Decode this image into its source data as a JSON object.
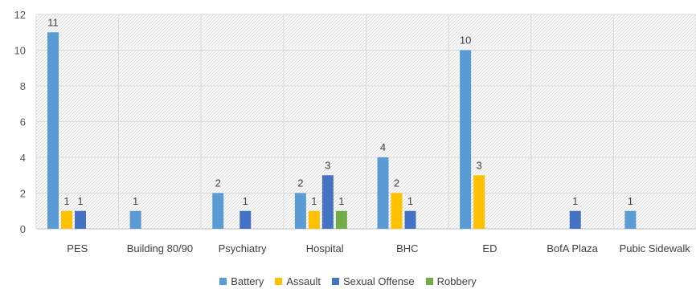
{
  "chart_data": {
    "type": "bar",
    "title": "",
    "xlabel": "",
    "ylabel": "",
    "ylim": [
      0,
      12
    ],
    "yticks": [
      0,
      2,
      4,
      6,
      8,
      10,
      12
    ],
    "grid": true,
    "legend_position": "bottom",
    "background_pattern": "diagonal-hatch",
    "categories": [
      "PES",
      "Building 80/90",
      "Psychiatry",
      "Hospital",
      "BHC",
      "ED",
      "BofA Plaza",
      "Pubic Sidewalk"
    ],
    "series": [
      {
        "name": "Battery",
        "color": "#5B9BD5",
        "values": [
          11,
          1,
          2,
          2,
          4,
          10,
          null,
          1
        ]
      },
      {
        "name": "Assault",
        "color": "#FFC000",
        "values": [
          1,
          null,
          null,
          1,
          2,
          3,
          null,
          null
        ]
      },
      {
        "name": "Sexual Offense",
        "color": "#4472C4",
        "values": [
          1,
          null,
          1,
          3,
          1,
          null,
          1,
          null
        ]
      },
      {
        "name": "Robbery",
        "color": "#70AD47",
        "values": [
          null,
          null,
          null,
          1,
          null,
          null,
          null,
          null
        ]
      }
    ]
  }
}
